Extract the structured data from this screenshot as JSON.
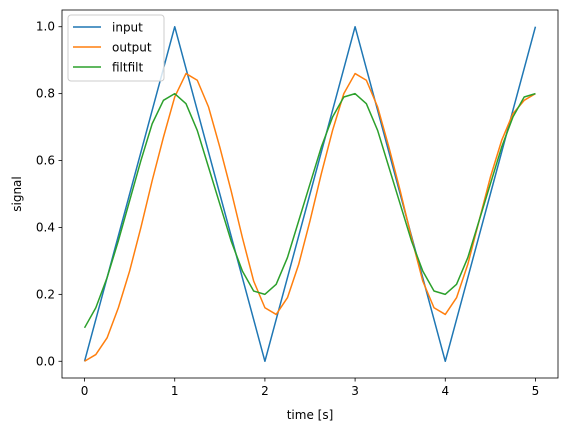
{
  "chart_data": {
    "type": "line",
    "title": "",
    "xlabel": "time [s]",
    "ylabel": "signal",
    "xlim": [
      -0.25,
      5.25
    ],
    "ylim": [
      -0.05,
      1.05
    ],
    "x_ticks": [
      0,
      1,
      2,
      3,
      4,
      5
    ],
    "x_tick_labels": [
      "0",
      "1",
      "2",
      "3",
      "4",
      "5"
    ],
    "y_ticks": [
      0.0,
      0.2,
      0.4,
      0.6,
      0.8,
      1.0
    ],
    "y_tick_labels": [
      "0.0",
      "0.2",
      "0.4",
      "0.6",
      "0.8",
      "1.0"
    ],
    "grid": false,
    "legend_position": "top-left",
    "x": [
      0,
      0.125,
      0.25,
      0.375,
      0.5,
      0.625,
      0.75,
      0.875,
      1,
      1.125,
      1.25,
      1.375,
      1.5,
      1.625,
      1.75,
      1.875,
      2,
      2.125,
      2.25,
      2.375,
      2.5,
      2.625,
      2.75,
      2.875,
      3,
      3.125,
      3.25,
      3.375,
      3.5,
      3.625,
      3.75,
      3.875,
      4,
      4.125,
      4.25,
      4.375,
      4.5,
      4.625,
      4.75,
      4.875,
      5
    ],
    "series": [
      {
        "name": "input",
        "color": "#1f77b4",
        "values": [
          0,
          0.125,
          0.25,
          0.375,
          0.5,
          0.625,
          0.75,
          0.875,
          1,
          0.875,
          0.75,
          0.625,
          0.5,
          0.375,
          0.25,
          0.125,
          0,
          0.125,
          0.25,
          0.375,
          0.5,
          0.625,
          0.75,
          0.875,
          1,
          0.875,
          0.75,
          0.625,
          0.5,
          0.375,
          0.25,
          0.125,
          0,
          0.125,
          0.25,
          0.375,
          0.5,
          0.625,
          0.75,
          0.875,
          1
        ]
      },
      {
        "name": "output",
        "color": "#ff7f0e",
        "values": [
          0,
          0.02,
          0.07,
          0.16,
          0.27,
          0.4,
          0.54,
          0.67,
          0.79,
          0.86,
          0.84,
          0.76,
          0.64,
          0.51,
          0.37,
          0.24,
          0.16,
          0.14,
          0.19,
          0.29,
          0.42,
          0.56,
          0.69,
          0.8,
          0.86,
          0.84,
          0.76,
          0.64,
          0.51,
          0.37,
          0.24,
          0.16,
          0.14,
          0.19,
          0.29,
          0.42,
          0.55,
          0.66,
          0.74,
          0.78,
          0.8
        ]
      },
      {
        "name": "filtfilt",
        "color": "#2ca02c",
        "values": [
          0.1,
          0.16,
          0.25,
          0.36,
          0.48,
          0.6,
          0.71,
          0.78,
          0.8,
          0.77,
          0.69,
          0.58,
          0.47,
          0.36,
          0.27,
          0.21,
          0.2,
          0.23,
          0.31,
          0.42,
          0.53,
          0.64,
          0.73,
          0.79,
          0.8,
          0.77,
          0.69,
          0.58,
          0.47,
          0.36,
          0.27,
          0.21,
          0.2,
          0.23,
          0.31,
          0.42,
          0.53,
          0.64,
          0.73,
          0.79,
          0.8
        ]
      }
    ]
  }
}
